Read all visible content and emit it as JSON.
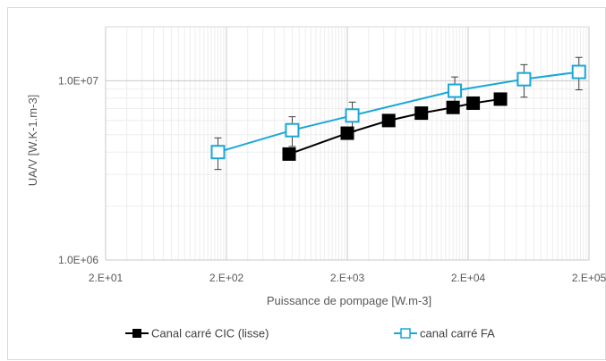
{
  "chart_data": {
    "type": "scatter",
    "xscale": "log",
    "yscale": "log",
    "xlim": [
      20,
      200000
    ],
    "ylim": [
      1000000,
      20000000
    ],
    "xlabel": "Puissance de pompage [W.m-3]",
    "ylabel": "UA/V [W.K-1.m-3]",
    "xticks": [
      "2.E+01",
      "2.E+02",
      "2.E+03",
      "2.E+04",
      "2.E+05"
    ],
    "yticks": [
      "1.0E+06",
      "1.0E+07"
    ],
    "grid": true,
    "legend_position": "bottom",
    "series": [
      {
        "name": "Canal carré CIC (lisse)",
        "color": "#000000",
        "marker": "filled-square",
        "x": [
          660,
          2000,
          4400,
          8200,
          15000,
          22000,
          37000
        ],
        "y": [
          3900000,
          5100000,
          6000000,
          6600000,
          7100000,
          7500000,
          7900000
        ]
      },
      {
        "name": "canal carré FA",
        "color": "#1aa7d6",
        "marker": "open-square",
        "x": [
          170,
          700,
          2200,
          15500,
          58000,
          165000
        ],
        "y": [
          4000000,
          5300000,
          6400000,
          8800000,
          10200000,
          11200000
        ],
        "err": [
          800000,
          1000000,
          1200000,
          1700000,
          2100000,
          2300000
        ]
      }
    ]
  }
}
